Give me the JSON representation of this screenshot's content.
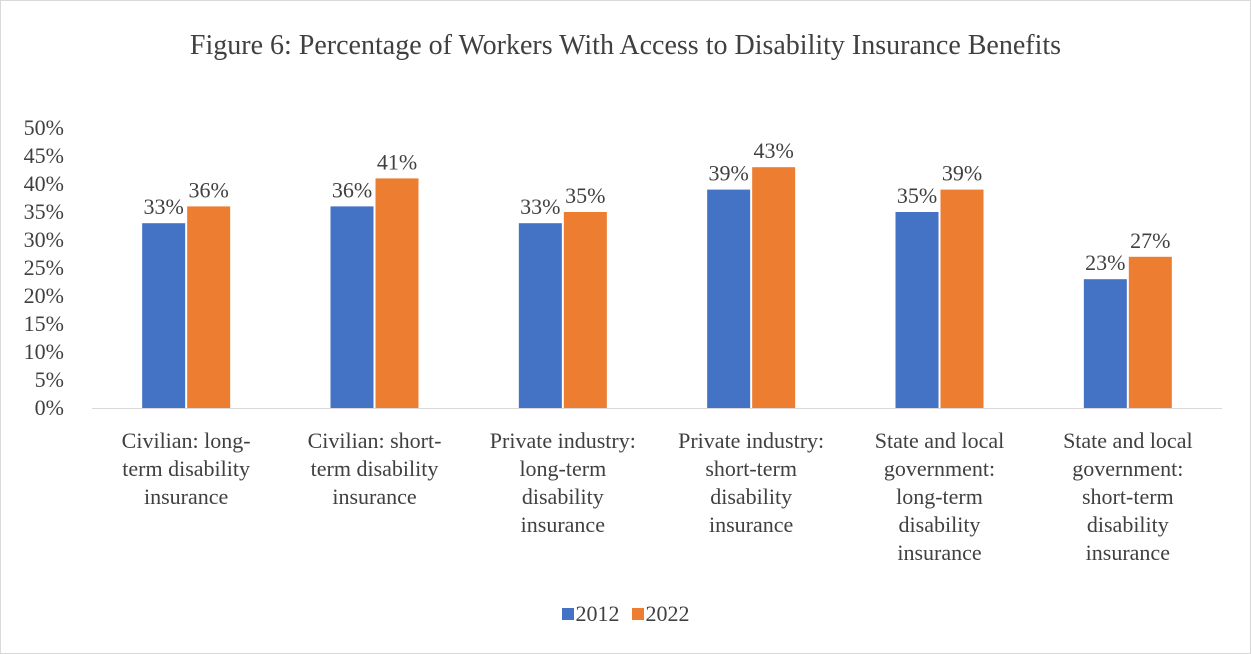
{
  "chart_data": {
    "type": "bar",
    "title": "Figure 6: Percentage of Workers With Access to Disability Insurance Benefits",
    "categories": [
      "Civilian: long-term disability insurance",
      "Civilian: short-term disability insurance",
      "Private industry: long-term disability insurance",
      "Private industry: short-term disability insurance",
      "State and local government: long-term disability insurance",
      "State and local government: short-term disability insurance"
    ],
    "category_lines": [
      [
        "Civilian: long-",
        "term disability",
        "insurance"
      ],
      [
        "Civilian: short-",
        "term disability",
        "insurance"
      ],
      [
        "Private industry:",
        "long-term",
        "disability",
        "insurance"
      ],
      [
        "Private industry:",
        "short-term",
        "disability",
        "insurance"
      ],
      [
        "State and local",
        "government:",
        "long-term",
        "disability",
        "insurance"
      ],
      [
        "State and local",
        "government:",
        "short-term",
        "disability",
        "insurance"
      ]
    ],
    "series": [
      {
        "name": "2012",
        "values": [
          33,
          36,
          33,
          39,
          35,
          23
        ],
        "labels": [
          "33%",
          "36%",
          "33%",
          "39%",
          "35%",
          "23%"
        ],
        "color": "#4472c4"
      },
      {
        "name": "2022",
        "values": [
          36,
          41,
          35,
          43,
          39,
          27
        ],
        "labels": [
          "36%",
          "41%",
          "35%",
          "43%",
          "39%",
          "27%"
        ],
        "color": "#ed7d31"
      }
    ],
    "ylim": [
      0,
      50
    ],
    "yticks": [
      "0%",
      "5%",
      "10%",
      "15%",
      "20%",
      "25%",
      "30%",
      "35%",
      "40%",
      "45%",
      "50%"
    ],
    "xlabel": "",
    "ylabel": "",
    "grid": false,
    "legend": "bottom"
  }
}
